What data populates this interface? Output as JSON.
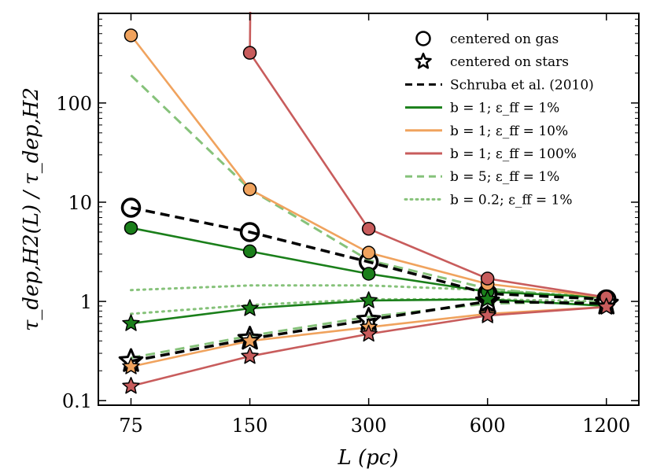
{
  "chart_data": {
    "type": "line",
    "x_scale": "log",
    "y_scale": "log",
    "x": [
      75,
      150,
      300,
      600,
      1200
    ],
    "x_tick_labels": [
      "75",
      "150",
      "300",
      "600",
      "1200"
    ],
    "y_ticks": [
      0.1,
      1,
      10,
      100
    ],
    "y_tick_labels": [
      "0.1",
      "1",
      "10",
      "100"
    ],
    "xlim": [
      62,
      1450
    ],
    "ylim": [
      0.09,
      800
    ],
    "xlabel": "L (pc)",
    "ylabel": "τ_dep,H2(L) / τ_dep,H2",
    "legend_position": "top-right",
    "legend": [
      {
        "label": "centered on gas",
        "kind": "circle"
      },
      {
        "label": "centered on stars",
        "kind": "star"
      },
      {
        "label": "Schruba et al. (2010)",
        "kind": "dashed",
        "color": "#000000"
      },
      {
        "label": "b = 1; ε_ff = 1%",
        "kind": "solid",
        "color": "#1a7f1a"
      },
      {
        "label": "b = 1; ε_ff = 10%",
        "kind": "solid",
        "color": "#f0a35e"
      },
      {
        "label": "b = 1; ε_ff = 100%",
        "kind": "solid",
        "color": "#c85c5c"
      },
      {
        "label": "b = 5;  ε_ff = 1%",
        "kind": "dashed",
        "color": "#86c27a"
      },
      {
        "label": "b = 0.2;  ε_ff = 1%",
        "kind": "dotted",
        "color": "#86c27a"
      }
    ],
    "series": [
      {
        "name": "Schruba et al. (2010) gas",
        "style": "dashed",
        "color": "#000000",
        "marker": "circle-open",
        "values": [
          8.8,
          5.0,
          2.5,
          1.2,
          1.05
        ]
      },
      {
        "name": "Schruba et al. (2010) stars",
        "style": "dashed",
        "color": "#000000",
        "marker": "star-open",
        "values": [
          0.25,
          0.42,
          0.65,
          1.0,
          0.95
        ]
      },
      {
        "name": "b = 1; eff = 1% gas",
        "style": "solid",
        "color": "#1a7f1a",
        "marker": "circle",
        "values": [
          5.5,
          3.2,
          1.9,
          1.25,
          1.1
        ]
      },
      {
        "name": "b = 1; eff = 1% stars",
        "style": "solid",
        "color": "#1a7f1a",
        "marker": "star",
        "values": [
          0.6,
          0.85,
          1.02,
          1.05,
          0.9
        ]
      },
      {
        "name": "b = 1; eff = 10% gas",
        "style": "solid",
        "color": "#f0a35e",
        "marker": "circle",
        "values": [
          480,
          13.5,
          3.1,
          1.5,
          1.1
        ]
      },
      {
        "name": "b = 1; eff = 10% stars",
        "style": "solid",
        "color": "#f0a35e",
        "marker": "star",
        "values": [
          0.22,
          0.4,
          0.55,
          0.75,
          0.88
        ]
      },
      {
        "name": "b = 1; eff = 100% gas",
        "style": "solid",
        "color": "#c85c5c",
        "marker": "circle",
        "values": [
          null,
          320,
          5.4,
          1.7,
          1.1
        ],
        "offscale_start": 5000
      },
      {
        "name": "b = 1; eff = 100% stars",
        "style": "solid",
        "color": "#c85c5c",
        "marker": "star",
        "values": [
          0.14,
          0.28,
          0.47,
          0.72,
          0.88
        ]
      },
      {
        "name": "b = 5; eff = 1% gas",
        "style": "dashed",
        "color": "#86c27a",
        "marker": "none",
        "values": [
          190,
          13.5,
          2.6,
          1.35,
          1.05
        ]
      },
      {
        "name": "b = 5; eff = 1% stars",
        "style": "dashed",
        "color": "#86c27a",
        "marker": "none",
        "values": [
          0.27,
          0.45,
          0.7,
          0.95,
          1.0
        ]
      },
      {
        "name": "b = 0.2; eff = 1% gas",
        "style": "dotted",
        "color": "#86c27a",
        "marker": "none",
        "values": [
          1.3,
          1.45,
          1.45,
          1.3,
          1.1
        ]
      },
      {
        "name": "b = 0.2; eff = 1% stars",
        "style": "dotted",
        "color": "#86c27a",
        "marker": "none",
        "values": [
          0.75,
          0.92,
          1.05,
          1.05,
          1.0
        ]
      }
    ]
  }
}
